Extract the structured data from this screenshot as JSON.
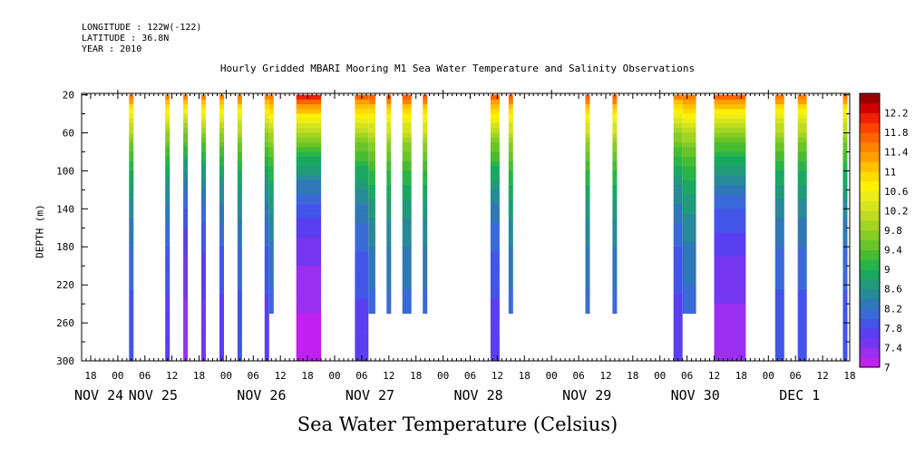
{
  "header": {
    "longitude": "LONGITUDE : 122W(-122)",
    "latitude": "LATITUDE : 36.8N",
    "year": "YEAR : 2010"
  },
  "chart_data": {
    "type": "heatmap",
    "title": "Hourly Gridded MBARI Mooring M1 Sea Water Temperature and Salinity Observations",
    "caption": "Sea Water Temperature (Celsius)",
    "ylabel": "DEPTH (m)",
    "xlabel": "",
    "y_range": [
      20,
      300
    ],
    "y_ticks": [
      20,
      60,
      100,
      140,
      180,
      220,
      260,
      300
    ],
    "x_range_hours": [
      -8,
      162
    ],
    "x_hour_ticks": [
      {
        "t": -6,
        "label": "18"
      },
      {
        "t": 0,
        "label": "00"
      },
      {
        "t": 6,
        "label": "06"
      },
      {
        "t": 12,
        "label": "12"
      },
      {
        "t": 18,
        "label": "18"
      },
      {
        "t": 24,
        "label": "00"
      },
      {
        "t": 30,
        "label": "06"
      },
      {
        "t": 36,
        "label": "12"
      },
      {
        "t": 42,
        "label": "18"
      },
      {
        "t": 48,
        "label": "00"
      },
      {
        "t": 54,
        "label": "06"
      },
      {
        "t": 60,
        "label": "12"
      },
      {
        "t": 66,
        "label": "18"
      },
      {
        "t": 72,
        "label": "00"
      },
      {
        "t": 78,
        "label": "06"
      },
      {
        "t": 84,
        "label": "12"
      },
      {
        "t": 90,
        "label": "18"
      },
      {
        "t": 96,
        "label": "00"
      },
      {
        "t": 102,
        "label": "06"
      },
      {
        "t": 108,
        "label": "12"
      },
      {
        "t": 114,
        "label": "18"
      },
      {
        "t": 120,
        "label": "00"
      },
      {
        "t": 126,
        "label": "06"
      },
      {
        "t": 132,
        "label": "12"
      },
      {
        "t": 138,
        "label": "18"
      },
      {
        "t": 144,
        "label": "00"
      },
      {
        "t": 150,
        "label": "06"
      },
      {
        "t": 156,
        "label": "12"
      },
      {
        "t": 162,
        "label": "18"
      }
    ],
    "x_day_labels": [
      {
        "t": -6,
        "label": "NOV 24"
      },
      {
        "t": 6,
        "label": "NOV 25"
      },
      {
        "t": 30,
        "label": "NOV 26"
      },
      {
        "t": 54,
        "label": "NOV 27"
      },
      {
        "t": 78,
        "label": "NOV 28"
      },
      {
        "t": 102,
        "label": "NOV 29"
      },
      {
        "t": 126,
        "label": "NOV 30"
      },
      {
        "t": 150,
        "label": "DEC  1"
      }
    ],
    "colorbar": {
      "labels": [
        "7",
        "7.4",
        "7.8",
        "8.2",
        "8.6",
        "9",
        "9.4",
        "9.8",
        "10.2",
        "10.6",
        "11",
        "11.4",
        "11.8",
        "12.2"
      ],
      "levels": [
        7,
        7.2,
        7.4,
        7.6,
        7.8,
        8,
        8.2,
        8.4,
        8.6,
        8.8,
        9,
        9.2,
        9.4,
        9.6,
        9.8,
        10,
        10.2,
        10.4,
        10.6,
        10.8,
        11,
        11.2,
        11.4,
        11.6,
        11.8,
        12,
        12.2,
        12.4
      ],
      "colors": [
        "#c020f0",
        "#9a2ff0",
        "#7536f0",
        "#5a3ff0",
        "#4255e8",
        "#3a6ad8",
        "#2f78b8",
        "#278a98",
        "#209a78",
        "#1aa860",
        "#2ab448",
        "#48bc30",
        "#6ac428",
        "#86cc26",
        "#a2d422",
        "#bedc20",
        "#d6e41c",
        "#ecec18",
        "#fff200",
        "#ffdc00",
        "#ffc000",
        "#ffa000",
        "#ff8200",
        "#ff6400",
        "#ff4200",
        "#f02000",
        "#d00000",
        "#9a0000"
      ]
    },
    "segments": [
      {
        "start": 2.5,
        "end": 3.5,
        "bottom": 300,
        "surface_temp": 11.6,
        "bottom_temp": 7.8
      },
      {
        "start": 10.5,
        "end": 11.5,
        "bottom": 300,
        "surface_temp": 11.6,
        "bottom_temp": 7.6
      },
      {
        "start": 14.5,
        "end": 15.5,
        "bottom": 300,
        "surface_temp": 11.6,
        "bottom_temp": 7.2
      },
      {
        "start": 18.5,
        "end": 19.5,
        "bottom": 300,
        "surface_temp": 11.6,
        "bottom_temp": 7.4
      },
      {
        "start": 22.5,
        "end": 23.5,
        "bottom": 300,
        "surface_temp": 11.6,
        "bottom_temp": 7.6
      },
      {
        "start": 26.5,
        "end": 27.5,
        "bottom": 300,
        "surface_temp": 11.6,
        "bottom_temp": 7.8
      },
      {
        "start": 32.5,
        "end": 33.5,
        "bottom": 300,
        "surface_temp": 11.6,
        "bottom_temp": 7.6
      },
      {
        "start": 33.5,
        "end": 34.5,
        "bottom": 250,
        "surface_temp": 11.6,
        "bottom_temp": 8.0
      },
      {
        "start": 39.5,
        "end": 45,
        "bottom": 300,
        "surface_temp": 12.2,
        "bottom_temp": 7.0
      },
      {
        "start": 52.5,
        "end": 55.5,
        "bottom": 300,
        "surface_temp": 11.8,
        "bottom_temp": 7.6
      },
      {
        "start": 55.5,
        "end": 57,
        "bottom": 250,
        "surface_temp": 11.8,
        "bottom_temp": 8.0
      },
      {
        "start": 59.5,
        "end": 60.5,
        "bottom": 250,
        "surface_temp": 11.8,
        "bottom_temp": 8.0
      },
      {
        "start": 63,
        "end": 65,
        "bottom": 250,
        "surface_temp": 11.8,
        "bottom_temp": 8.0
      },
      {
        "start": 67.5,
        "end": 68.5,
        "bottom": 250,
        "surface_temp": 11.8,
        "bottom_temp": 8.0
      },
      {
        "start": 82.5,
        "end": 84.5,
        "bottom": 300,
        "surface_temp": 11.8,
        "bottom_temp": 7.6
      },
      {
        "start": 86.5,
        "end": 87.5,
        "bottom": 250,
        "surface_temp": 11.8,
        "bottom_temp": 8.0
      },
      {
        "start": 103.5,
        "end": 104.5,
        "bottom": 250,
        "surface_temp": 11.8,
        "bottom_temp": 8.0
      },
      {
        "start": 109.5,
        "end": 110.5,
        "bottom": 250,
        "surface_temp": 11.8,
        "bottom_temp": 8.0
      },
      {
        "start": 123,
        "end": 125,
        "bottom": 300,
        "surface_temp": 11.6,
        "bottom_temp": 7.6
      },
      {
        "start": 125,
        "end": 128,
        "bottom": 250,
        "surface_temp": 11.6,
        "bottom_temp": 8.0
      },
      {
        "start": 132,
        "end": 139,
        "bottom": 300,
        "surface_temp": 11.8,
        "bottom_temp": 7.2
      },
      {
        "start": 145.5,
        "end": 147.5,
        "bottom": 300,
        "surface_temp": 11.6,
        "bottom_temp": 7.8
      },
      {
        "start": 150.5,
        "end": 152.5,
        "bottom": 300,
        "surface_temp": 11.6,
        "bottom_temp": 7.8
      },
      {
        "start": 160.5,
        "end": 161.5,
        "bottom": 300,
        "surface_temp": 11.6,
        "bottom_temp": 7.8
      }
    ]
  }
}
